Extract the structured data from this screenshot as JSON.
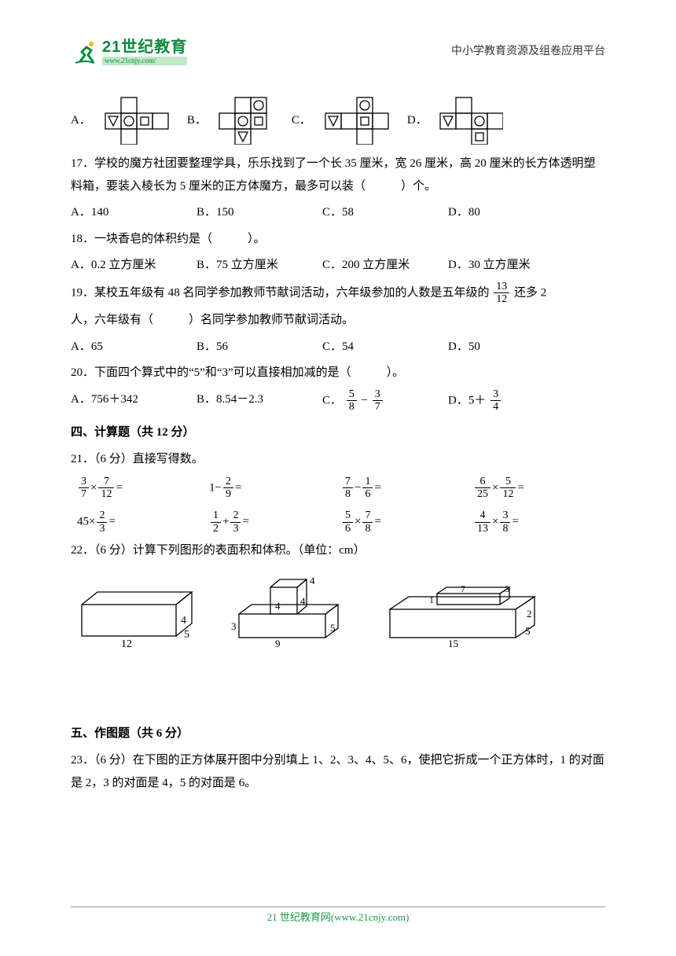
{
  "header": {
    "brand_cn": "21世纪教育",
    "brand_url": "www.21cnjy.com/",
    "right_text": "中小学教育资源及组卷应用平台"
  },
  "q16": {
    "label_A": "A．",
    "label_B": "B．",
    "label_C": "C．",
    "label_D": "D．"
  },
  "q17": {
    "text": "17．学校的魔方社团要整理学具，乐乐找到了一个长 35 厘米，宽 26 厘米，高 20 厘米的长方体透明塑料箱，要装入棱长为 5 厘米的正方体魔方，最多可以装（　　　）个。",
    "A": "A．140",
    "B": "B．150",
    "C": "C．58",
    "D": "D．80"
  },
  "q18": {
    "text": "18．一块香皂的体积约是（　　　）。",
    "A": "A．0.2 立方厘米",
    "B": "B．75 立方厘米",
    "C": "C．200 立方厘米",
    "D": "D．30 立方厘米"
  },
  "q19": {
    "pre": "19．某校五年级有 48 名同学参加教师节献词活动，六年级参加的人数是五年级的",
    "frac_n": "13",
    "frac_d": "12",
    "post": "还多 2",
    "line2": "人，六年级有（　　　）名同学参加教师节献词活动。",
    "A": "A．65",
    "B": "B．56",
    "C": "C．54",
    "D": "D．50"
  },
  "q20": {
    "text": "20．下面四个算式中的“5”和“3”可以直接相加减的是（　　　）。",
    "A": "A．756＋342",
    "B": "B．8.54－2.3",
    "C_pre": "C．",
    "C_f1n": "5",
    "C_f1d": "8",
    "C_mid": " − ",
    "C_f2n": "3",
    "C_f2d": "7",
    "D_pre": "D．5＋",
    "D_fn": "3",
    "D_fd": "4"
  },
  "sec4": {
    "title": "四、计算题（共 12 分）"
  },
  "q21": {
    "text": "21．（6 分）直接写得数。",
    "cells": [
      {
        "type": "fm",
        "a_n": "3",
        "a_d": "7",
        "op": "×",
        "b_n": "7",
        "b_d": "12",
        "tail": "="
      },
      {
        "type": "if",
        "lead": "1−",
        "n": "2",
        "d": "9",
        "tail": "="
      },
      {
        "type": "ff",
        "a_n": "7",
        "a_d": "8",
        "op": "−",
        "b_n": "1",
        "b_d": "6",
        "tail": "="
      },
      {
        "type": "fm",
        "a_n": "6",
        "a_d": "25",
        "op": "×",
        "b_n": "5",
        "b_d": "12",
        "tail": "="
      },
      {
        "type": "if",
        "lead": "45×",
        "n": "2",
        "d": "3",
        "tail": "="
      },
      {
        "type": "ff",
        "a_n": "1",
        "a_d": "2",
        "op": "+",
        "b_n": "2",
        "b_d": "3",
        "tail": "="
      },
      {
        "type": "fm",
        "a_n": "5",
        "a_d": "6",
        "op": "×",
        "b_n": "7",
        "b_d": "8",
        "tail": "="
      },
      {
        "type": "fm",
        "a_n": "4",
        "a_d": "13",
        "op": "×",
        "b_n": "3",
        "b_d": "8",
        "tail": "="
      }
    ]
  },
  "q22": {
    "text": "22．（6 分）计算下列图形的表面积和体积。（单位：cm）"
  },
  "solids": {
    "a": {
      "L": "12",
      "W": "5",
      "H": "4"
    },
    "b": {
      "baseL": "9",
      "baseW": "5",
      "baseH": "3",
      "cube": "4",
      "cubeTop": "4"
    },
    "c": {
      "baseL": "15",
      "baseW": "5",
      "baseH": "2",
      "topL": "7",
      "topW": "3",
      "topH": "1"
    }
  },
  "sec5": {
    "title": "五、作图题（共 6 分）"
  },
  "q23": {
    "text": "23．（6 分）在下图的正方体展开图中分别填上 1、2、3、4、5、6，使把它折成一个正方体时，1 的对面是 2，3 的对面是 4，5 的对面是 6。"
  },
  "footer": {
    "text": "21 世纪教育网(www.21cnjy.com)"
  },
  "colors": {
    "text": "#000000",
    "brand": "#0a8a3a",
    "footer": "#1a9c49",
    "rule": "#999999"
  }
}
